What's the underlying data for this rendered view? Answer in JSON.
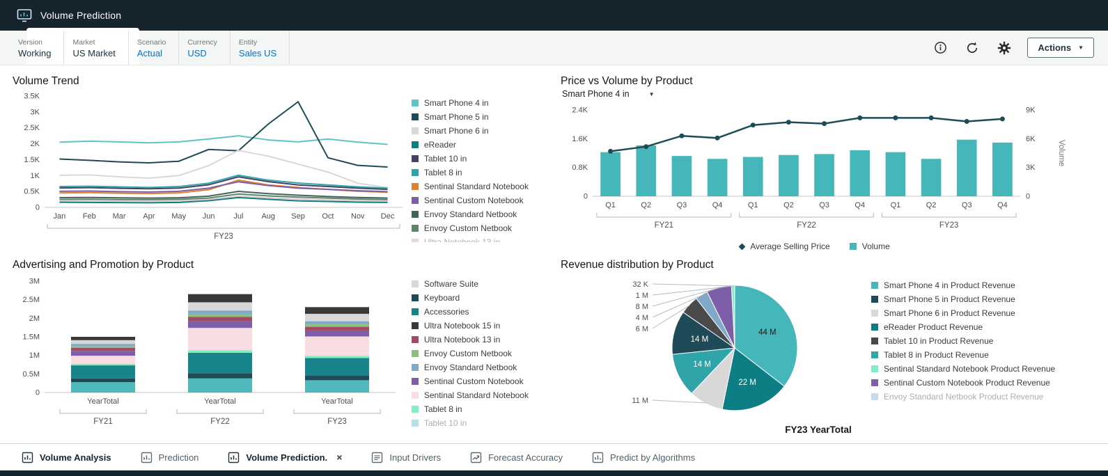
{
  "colors": {
    "accent": "#0b6fc2",
    "header": "#16242e",
    "teal": "#45b6ba"
  },
  "header": {
    "title": "Volume Prediction"
  },
  "pov": {
    "items": [
      {
        "label": "Version",
        "value": "Working"
      },
      {
        "label": "Market",
        "value": "US Market"
      },
      {
        "label": "Scenario",
        "value": "Actual"
      },
      {
        "label": "Currency",
        "value": "USD"
      },
      {
        "label": "Entity",
        "value": "Sales US"
      }
    ],
    "actions_label": "Actions"
  },
  "panels": {
    "volume_trend": {
      "title": "Volume Trend"
    },
    "price_volume": {
      "title": "Price vs Volume by Product",
      "selector": "Smart Phone 4 in"
    },
    "advertising": {
      "title": "Advertising and Promotion by Product"
    },
    "revenue": {
      "title": "Revenue distribution by Product",
      "caption": "FY23 YearTotal"
    }
  },
  "chart_data": [
    {
      "id": "volume_trend",
      "type": "line",
      "title": "Volume Trend",
      "x": [
        "Jan",
        "Feb",
        "Mar",
        "Apr",
        "May",
        "Jun",
        "Jul",
        "Aug",
        "Sep",
        "Oct",
        "Nov",
        "Dec"
      ],
      "group_label": "FY23",
      "ylim": [
        0,
        3500
      ],
      "yticks": [
        "0",
        "0.5K",
        "1K",
        "1.5K",
        "2K",
        "2.5K",
        "3K",
        "3.5K"
      ],
      "series": [
        {
          "name": "Smart Phone 4 in",
          "color": "#5fc4c8",
          "values": [
            2050,
            2080,
            2060,
            2030,
            2060,
            2150,
            2250,
            2120,
            2060,
            2150,
            2050,
            1980
          ]
        },
        {
          "name": "Smart Phone 5 in",
          "color": "#1e4b57",
          "values": [
            1520,
            1480,
            1430,
            1400,
            1450,
            1820,
            1780,
            2620,
            3320,
            1560,
            1320,
            1270
          ]
        },
        {
          "name": "Smart Phone 6 in",
          "color": "#d8d8d8",
          "values": [
            1010,
            1020,
            960,
            920,
            1000,
            1310,
            1790,
            1610,
            1360,
            1110,
            760,
            620
          ]
        },
        {
          "name": "eReader",
          "color": "#0d7e84",
          "values": [
            160,
            155,
            150,
            145,
            155,
            210,
            310,
            255,
            205,
            185,
            165,
            155
          ]
        },
        {
          "name": "Tablet 10 in",
          "color": "#474066",
          "values": [
            610,
            620,
            600,
            585,
            605,
            710,
            960,
            810,
            705,
            655,
            605,
            565
          ]
        },
        {
          "name": "Tablet 8 in",
          "color": "#2fa4a9",
          "values": [
            655,
            665,
            645,
            625,
            655,
            760,
            1010,
            855,
            765,
            705,
            645,
            605
          ]
        },
        {
          "name": "Sentinal Standard Notebook",
          "color": "#e0812f",
          "values": [
            455,
            465,
            445,
            435,
            455,
            555,
            855,
            705,
            625,
            565,
            505,
            475
          ]
        },
        {
          "name": "Sentinal Custom Notebook",
          "color": "#7d5fa9",
          "values": [
            505,
            515,
            495,
            485,
            505,
            605,
            805,
            685,
            605,
            565,
            525,
            495
          ]
        },
        {
          "name": "Envoy Standard Netbook",
          "color": "#42645a",
          "values": [
            305,
            312,
            302,
            292,
            302,
            352,
            502,
            432,
            382,
            342,
            312,
            292
          ]
        },
        {
          "name": "Envoy Custom Netbook",
          "color": "#5d8468",
          "values": [
            252,
            257,
            247,
            242,
            252,
            292,
            422,
            362,
            322,
            292,
            262,
            242
          ]
        },
        {
          "name": "Ultra Notebook 13 in",
          "color": "#c9a0ac",
          "dim": true,
          "values": [
            202,
            207,
            197,
            192,
            202,
            242,
            352,
            302,
            262,
            232,
            212,
            197
          ]
        }
      ]
    },
    {
      "id": "price_volume",
      "type": "combo",
      "title": "Price vs Volume by Product",
      "x": [
        "Q1",
        "Q2",
        "Q3",
        "Q4",
        "Q1",
        "Q2",
        "Q3",
        "Q4",
        "Q1",
        "Q2",
        "Q3",
        "Q4"
      ],
      "groups": [
        {
          "label": "FY21",
          "span": [
            0,
            3
          ]
        },
        {
          "label": "FY22",
          "span": [
            4,
            7
          ]
        },
        {
          "label": "FY23",
          "span": [
            8,
            11
          ]
        }
      ],
      "left_ylim": [
        0,
        2400
      ],
      "left_yticks": [
        "0",
        "0.8K",
        "1.6K",
        "2.4K"
      ],
      "right_ylim": [
        0,
        9000
      ],
      "right_yticks": [
        "0",
        "3K",
        "6K",
        "9K"
      ],
      "right_axis_label": "Volume",
      "bars": {
        "name": "Volume",
        "color": "#45b6ba",
        "values": [
          4600,
          5300,
          4200,
          3900,
          4100,
          4300,
          4400,
          4800,
          4600,
          3900,
          5900,
          5600
        ]
      },
      "line": {
        "name": "Average Selling Price",
        "color": "#1e4b57",
        "values": [
          1250,
          1380,
          1680,
          1620,
          1980,
          2060,
          2020,
          2180,
          2180,
          2180,
          2080,
          2150
        ]
      },
      "legend": [
        {
          "name": "Average Selling Price",
          "marker": "diamond",
          "color": "#1e4b57"
        },
        {
          "name": "Volume",
          "marker": "square",
          "color": "#45b6ba"
        }
      ]
    },
    {
      "id": "advertising",
      "type": "bar-stacked",
      "title": "Advertising and Promotion by Product",
      "x": [
        "YearTotal",
        "YearTotal",
        "YearTotal"
      ],
      "groups": [
        {
          "label": "FY21"
        },
        {
          "label": "FY22"
        },
        {
          "label": "FY23"
        }
      ],
      "ylim": [
        0,
        3
      ],
      "yticks": [
        "0",
        "0.5M",
        "1M",
        "1.5M",
        "2M",
        "2.5M",
        "3M"
      ],
      "series": [
        {
          "name": "Tablet 10 in",
          "color": "#4fb9bd",
          "values": [
            0.28,
            0.38,
            0.33
          ]
        },
        {
          "name": "Keyboard",
          "color": "#1e4b57",
          "values": [
            0.1,
            0.14,
            0.12
          ]
        },
        {
          "name": "Accessories",
          "color": "#17858b",
          "values": [
            0.35,
            0.55,
            0.48
          ]
        },
        {
          "name": "Tablet 8 in",
          "color": "#7ff0c4",
          "values": [
            0.04,
            0.07,
            0.06
          ]
        },
        {
          "name": "Sentinal Standard Notebook",
          "color": "#f8dde2",
          "values": [
            0.22,
            0.6,
            0.52
          ]
        },
        {
          "name": "Sentinal Custom Notebook",
          "color": "#7d5fa9",
          "values": [
            0.13,
            0.18,
            0.16
          ]
        },
        {
          "name": "Ultra Notebook 13 in",
          "color": "#a34a64",
          "values": [
            0.08,
            0.12,
            0.1
          ]
        },
        {
          "name": "Envoy Custom Netbook",
          "color": "#8cbf7f",
          "values": [
            0.05,
            0.08,
            0.07
          ]
        },
        {
          "name": "Envoy Standard Netbook",
          "color": "#7fa8c9",
          "values": [
            0.06,
            0.09,
            0.08
          ]
        },
        {
          "name": "Software Suite",
          "color": "#d8d8d8",
          "values": [
            0.1,
            0.22,
            0.2
          ]
        },
        {
          "name": "Ultra Notebook 15 in",
          "color": "#383838",
          "values": [
            0.09,
            0.22,
            0.18
          ]
        }
      ],
      "legend": [
        {
          "name": "Software Suite",
          "color": "#d8d8d8"
        },
        {
          "name": "Keyboard",
          "color": "#1e4b57"
        },
        {
          "name": "Accessories",
          "color": "#17858b"
        },
        {
          "name": "Ultra Notebook 15 in",
          "color": "#383838"
        },
        {
          "name": "Ultra Notebook 13 in",
          "color": "#a34a64"
        },
        {
          "name": "Envoy Custom Netbook",
          "color": "#8cbf7f"
        },
        {
          "name": "Envoy Standard Netbook",
          "color": "#7fa8c9"
        },
        {
          "name": "Sentinal Custom Notebook",
          "color": "#7d5fa9"
        },
        {
          "name": "Sentinal Standard Notebook",
          "color": "#f8dde2"
        },
        {
          "name": "Tablet 8 in",
          "color": "#7ff0c4"
        },
        {
          "name": "Tablet 10 in",
          "color": "#4fb9bd",
          "dim": true
        }
      ]
    },
    {
      "id": "revenue",
      "type": "pie",
      "title": "Revenue distribution by Product",
      "caption": "FY23 YearTotal",
      "slices": [
        {
          "label": "44 M",
          "value": 44,
          "color": "#45b6ba"
        },
        {
          "label": "22 M",
          "value": 22,
          "color": "#0d7e84"
        },
        {
          "label": "11 M",
          "value": 11,
          "color": "#d8d8d8"
        },
        {
          "label": "14 M",
          "value": 14,
          "color": "#2fa4a9"
        },
        {
          "label": "14 M",
          "value": 14,
          "color": "#1e4b57"
        },
        {
          "label": "6 M",
          "value": 6,
          "color": "#4a4a4a"
        },
        {
          "label": "4 M",
          "value": 4,
          "color": "#7fa8c9"
        },
        {
          "label": "8 M",
          "value": 8,
          "color": "#7d5fa9"
        },
        {
          "label": "1 M",
          "value": 1,
          "color": "#7ff0c4"
        },
        {
          "label": "32 K",
          "value": 0.032,
          "color": "#7d7d35"
        }
      ],
      "legend": [
        {
          "name": "Smart Phone 4 in Product Revenue",
          "color": "#45b6ba"
        },
        {
          "name": "Smart Phone 5 in Product Revenue",
          "color": "#1e4b57"
        },
        {
          "name": "Smart Phone 6 in Product Revenue",
          "color": "#d8d8d8"
        },
        {
          "name": "eReader Product Revenue",
          "color": "#0d7e84"
        },
        {
          "name": "Tablet 10 in Product Revenue",
          "color": "#4a4a4a"
        },
        {
          "name": "Tablet 8 in Product Revenue",
          "color": "#2fa4a9"
        },
        {
          "name": "Sentinal Standard Notebook Product Revenue",
          "color": "#7ff0c4"
        },
        {
          "name": "Sentinal Custom Notebook Product Revenue",
          "color": "#7d5fa9"
        },
        {
          "name": "Envoy Standard Netbook Product Revenue",
          "color": "#7fa8c9",
          "dim": true
        }
      ]
    }
  ],
  "tabs": [
    {
      "label": "Volume Analysis",
      "icon": "report-icon",
      "emph": true
    },
    {
      "label": "Prediction",
      "icon": "report-icon"
    },
    {
      "label": "Volume Prediction.",
      "icon": "report-icon",
      "emph": true,
      "closable": true
    },
    {
      "label": "Input Drivers",
      "icon": "list-icon"
    },
    {
      "label": "Forecast Accuracy",
      "icon": "forecast-icon"
    },
    {
      "label": "Predict by Algorithms",
      "icon": "report-icon"
    }
  ]
}
